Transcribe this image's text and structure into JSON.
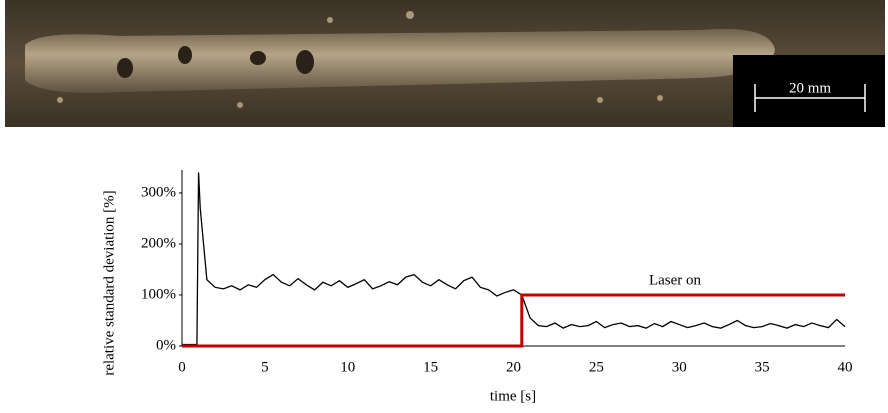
{
  "photo": {
    "scale_label": "20 mm"
  },
  "chart_data": {
    "type": "line",
    "x_label": "time [s]",
    "y_label": "relative standard deviation [%]",
    "annotation": "Laser on",
    "xlim": [
      0,
      40
    ],
    "xticks": [
      0,
      5,
      10,
      15,
      20,
      25,
      30,
      35,
      40
    ],
    "ylim": [
      0,
      345
    ],
    "yticks": [
      {
        "value": 0,
        "label": "0%"
      },
      {
        "value": 100,
        "label": "100%"
      },
      {
        "value": 200,
        "label": "200%"
      },
      {
        "value": 300,
        "label": "300%"
      }
    ],
    "grid": false,
    "series": [
      {
        "color": "#000000",
        "x": [
          0,
          0.5,
          0.9,
          1,
          1.1,
          1.3,
          1.5,
          2,
          2.5,
          3,
          3.5,
          4,
          4.5,
          5,
          5.5,
          6,
          6.5,
          7,
          7.5,
          8,
          8.5,
          9,
          9.5,
          10,
          10.5,
          11,
          11.5,
          12,
          12.5,
          13,
          13.5,
          14,
          14.5,
          15,
          15.5,
          16,
          16.5,
          17,
          17.5,
          18,
          18.5,
          19,
          19.5,
          20,
          20.5,
          21,
          21.5,
          22,
          22.5,
          23,
          23.5,
          24,
          24.5,
          25,
          25.5,
          26,
          26.5,
          27,
          27.5,
          28,
          28.5,
          29,
          29.5,
          30,
          30.5,
          31,
          31.5,
          32,
          32.5,
          33,
          33.5,
          34,
          34.5,
          35,
          35.5,
          36,
          36.5,
          37,
          37.5,
          38,
          38.5,
          39,
          39.5,
          40
        ],
        "values": [
          3,
          3,
          3,
          340,
          270,
          200,
          130,
          115,
          112,
          118,
          110,
          120,
          115,
          130,
          140,
          125,
          118,
          132,
          120,
          110,
          125,
          118,
          128,
          115,
          122,
          130,
          112,
          118,
          126,
          120,
          135,
          140,
          125,
          118,
          130,
          120,
          112,
          128,
          135,
          115,
          110,
          98,
          105,
          110,
          100,
          55,
          40,
          38,
          45,
          35,
          42,
          38,
          40,
          48,
          36,
          42,
          45,
          38,
          40,
          35,
          44,
          38,
          48,
          42,
          36,
          40,
          45,
          38,
          35,
          42,
          50,
          40,
          36,
          38,
          44,
          40,
          35,
          42,
          38,
          45,
          40,
          36,
          52,
          38
        ]
      },
      {
        "color": "#c00000",
        "x": [
          0,
          20.5,
          20.5,
          40
        ],
        "values": [
          0,
          0,
          100,
          100
        ]
      }
    ]
  }
}
